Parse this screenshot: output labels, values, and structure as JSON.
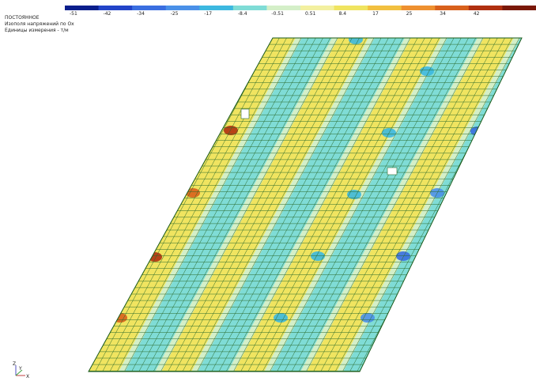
{
  "header": {
    "load_case": "ПОСТОЯННОЕ",
    "result": "Изополя напряжений по Ox",
    "units": "Единицы измерения - т/м"
  },
  "legend": {
    "labels": [
      "-51",
      "-42",
      "-34",
      "-25",
      "-17",
      "-8.4",
      "-0.51",
      "0.51",
      "8.4",
      "17",
      "25",
      "34",
      "42"
    ],
    "colors": [
      "#0a1e8c",
      "#2244c8",
      "#3a6ee0",
      "#4a90e8",
      "#3cb8e0",
      "#7fdcd6",
      "#d4efc8",
      "#f3f0a0",
      "#f0e460",
      "#f2c040",
      "#ee9030",
      "#d8601c",
      "#b03010",
      "#7a1808"
    ]
  },
  "axes": {
    "z": "Z",
    "y": "Y",
    "x": "X"
  }
}
